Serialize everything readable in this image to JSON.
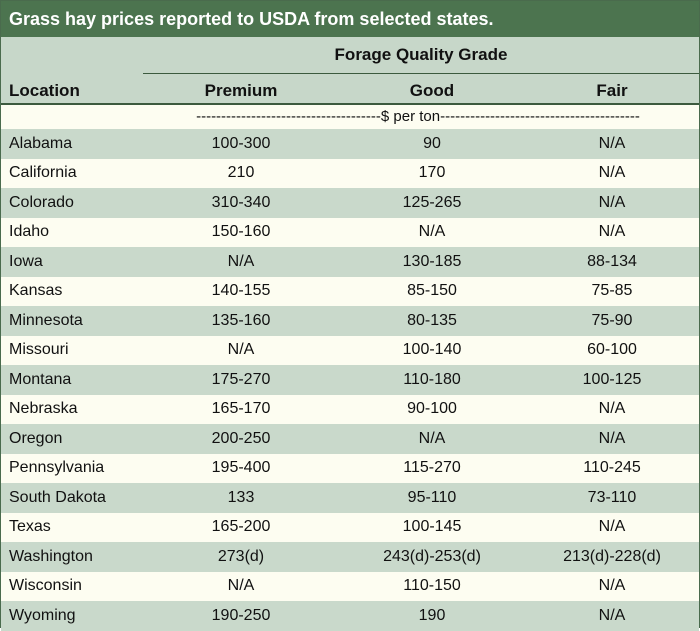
{
  "title": "Grass hay prices reported to USDA from selected states.",
  "header": {
    "group_label": "Forage Quality Grade",
    "location_label": "Location",
    "columns": [
      "Premium",
      "Good",
      "Fair"
    ]
  },
  "units_label": "-------------------------------------$ per ton----------------------------------------",
  "rows": [
    {
      "location": "Alabama",
      "premium": "100-300",
      "good": "90",
      "fair": "N/A"
    },
    {
      "location": "California",
      "premium": "210",
      "good": "170",
      "fair": "N/A"
    },
    {
      "location": "Colorado",
      "premium": "310-340",
      "good": "125-265",
      "fair": "N/A"
    },
    {
      "location": "Idaho",
      "premium": "150-160",
      "good": "N/A",
      "fair": "N/A"
    },
    {
      "location": "Iowa",
      "premium": "N/A",
      "good": "130-185",
      "fair": "88-134"
    },
    {
      "location": "Kansas",
      "premium": "140-155",
      "good": "85-150",
      "fair": "75-85"
    },
    {
      "location": "Minnesota",
      "premium": "135-160",
      "good": "80-135",
      "fair": "75-90"
    },
    {
      "location": "Missouri",
      "premium": "N/A",
      "good": "100-140",
      "fair": "60-100"
    },
    {
      "location": "Montana",
      "premium": "175-270",
      "good": "110-180",
      "fair": "100-125"
    },
    {
      "location": "Nebraska",
      "premium": "165-170",
      "good": "90-100",
      "fair": "N/A"
    },
    {
      "location": "Oregon",
      "premium": "200-250",
      "good": "N/A",
      "fair": "N/A"
    },
    {
      "location": "Pennsylvania",
      "premium": "195-400",
      "good": "115-270",
      "fair": "110-245"
    },
    {
      "location": "South Dakota",
      "premium": "133",
      "good": "95-110",
      "fair": "73-110"
    },
    {
      "location": "Texas",
      "premium": "165-200",
      "good": "100-145",
      "fair": "N/A"
    },
    {
      "location": "Washington",
      "premium": "273(d)",
      "good": "243(d)-253(d)",
      "fair": "213(d)-228(d)"
    },
    {
      "location": "Wisconsin",
      "premium": "N/A",
      "good": "110-150",
      "fair": "N/A"
    },
    {
      "location": "Wyoming",
      "premium": "190-250",
      "good": "190",
      "fair": "N/A"
    }
  ]
}
